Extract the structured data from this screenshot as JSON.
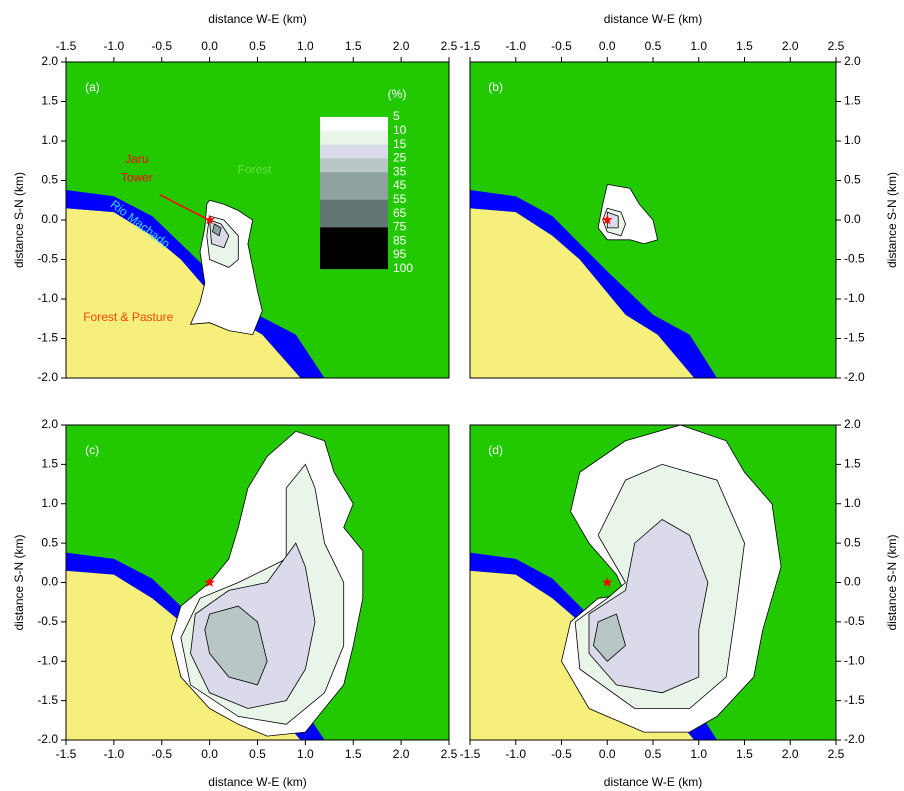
{
  "chart_data": [
    {
      "type": "contour",
      "label": "(a)",
      "xlabel": "distance W-E (km)",
      "ylabel": "distance S-N (km)",
      "xaxis": "top",
      "yaxis": "left",
      "xlim": [
        -1.5,
        2.5
      ],
      "ylim": [
        -2,
        2
      ],
      "xticks": [
        -1.5,
        {
          "value": -1,
          "label": "-1.0"
        },
        -0.5,
        {
          "value": 0,
          "label": "0.0"
        },
        0.5,
        {
          "value": 1,
          "label": "1.0"
        },
        1.5,
        {
          "value": 2,
          "label": "2.0"
        },
        2.5
      ],
      "yticks": [
        {
          "value": 2,
          "label": "2.0"
        },
        1.5,
        {
          "value": 1,
          "label": "1.0"
        },
        0.5,
        {
          "value": 0,
          "label": "0.0"
        },
        -0.5,
        {
          "value": -1,
          "label": "-1.0"
        },
        -1.5,
        {
          "value": -2,
          "label": "-2.0"
        }
      ],
      "annotations": [
        "Jaru",
        "Tower",
        "Forest",
        "Rio Machado",
        "Forest & Pasture"
      ],
      "colorbar": {
        "title": "(%)",
        "levels": [
          5,
          10,
          15,
          25,
          35,
          45,
          55,
          65,
          75,
          85,
          95,
          100
        ],
        "colors": [
          "#ffffff",
          "#eaf5ea",
          "#dadaea",
          "#b9c6c6",
          "#8fa2a2",
          "#8fa2a2",
          "#627676",
          "#627676",
          "#000000",
          "#000000",
          "#000000"
        ]
      }
    },
    {
      "type": "contour",
      "label": "(b)",
      "xlabel": "distance W-E (km)",
      "ylabel": "distance S-N (km)",
      "xaxis": "top",
      "yaxis": "right",
      "xlim": [
        -1.5,
        2.5
      ],
      "ylim": [
        -2,
        2
      ],
      "xticks": [
        -1.5,
        {
          "value": -1,
          "label": "-1.0"
        },
        -0.5,
        {
          "value": 0,
          "label": "0.0"
        },
        0.5,
        {
          "value": 1,
          "label": "1.0"
        },
        1.5,
        {
          "value": 2,
          "label": "2.0"
        },
        2.5
      ],
      "yticks": [
        {
          "value": 2,
          "label": "2.0"
        },
        1.5,
        {
          "value": 1,
          "label": "1.0"
        },
        0.5,
        {
          "value": 0,
          "label": "0.0"
        },
        -0.5,
        {
          "value": -1,
          "label": "-1.0"
        },
        -1.5,
        {
          "value": -2,
          "label": "-2.0"
        }
      ]
    },
    {
      "type": "contour",
      "label": "(c)",
      "xlabel": "distance W-E (km)",
      "ylabel": "distance S-N (km)",
      "xaxis": "bottom",
      "yaxis": "left",
      "xlim": [
        -1.5,
        2.5
      ],
      "ylim": [
        -2,
        2
      ],
      "xticks": [
        -1.5,
        {
          "value": -1,
          "label": "-1.0"
        },
        -0.5,
        {
          "value": 0,
          "label": "0.0"
        },
        0.5,
        {
          "value": 1,
          "label": "1.0"
        },
        1.5,
        {
          "value": 2,
          "label": "2.0"
        },
        2.5
      ],
      "yticks": [
        {
          "value": 2,
          "label": "2.0"
        },
        1.5,
        {
          "value": 1,
          "label": "1.0"
        },
        0.5,
        {
          "value": 0,
          "label": "0.0"
        },
        -0.5,
        {
          "value": -1,
          "label": "-1.0"
        },
        -1.5,
        {
          "value": -2,
          "label": "-2.0"
        }
      ]
    },
    {
      "type": "contour",
      "label": "(d)",
      "xlabel": "distance W-E (km)",
      "ylabel": "distance S-N (km)",
      "xaxis": "bottom",
      "yaxis": "right",
      "xlim": [
        -1.5,
        2.5
      ],
      "ylim": [
        -2,
        2
      ],
      "xticks": [
        -1.5,
        {
          "value": -1,
          "label": "-1.0"
        },
        -0.5,
        {
          "value": 0,
          "label": "0.0"
        },
        0.5,
        {
          "value": 1,
          "label": "1.0"
        },
        1.5,
        {
          "value": 2,
          "label": "2.0"
        },
        2.5
      ],
      "yticks": [
        {
          "value": 2,
          "label": "2.0"
        },
        1.5,
        {
          "value": 1,
          "label": "1.0"
        },
        0.5,
        {
          "value": 0,
          "label": "0.0"
        },
        -0.5,
        {
          "value": -1,
          "label": "-1.0"
        },
        -1.5,
        {
          "value": -2,
          "label": "-2.0"
        }
      ]
    }
  ]
}
